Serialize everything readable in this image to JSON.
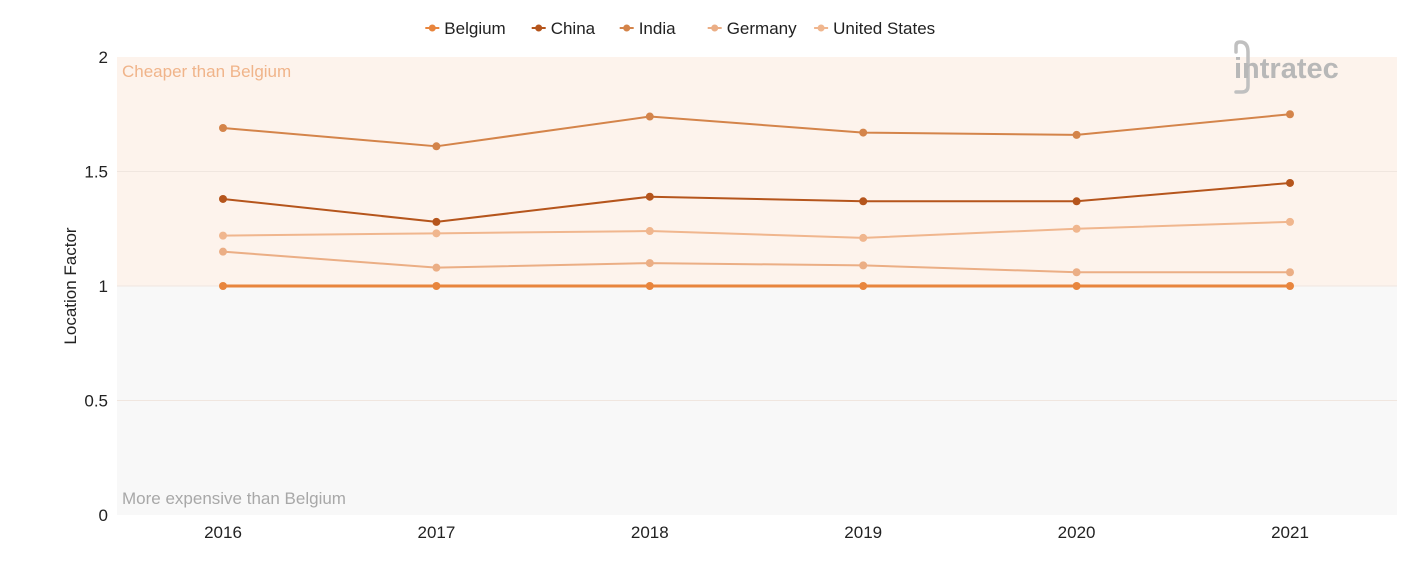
{
  "chart_data": {
    "type": "line",
    "title": "",
    "xlabel": "",
    "ylabel": "Location Factor",
    "ylim": [
      0,
      2
    ],
    "yticks": [
      0,
      0.5,
      1,
      1.5,
      2
    ],
    "ytick_labels": [
      "0",
      "0.5",
      "1",
      "1.5",
      "2"
    ],
    "categories": [
      "2016",
      "2017",
      "2018",
      "2019",
      "2020",
      "2021"
    ],
    "legend_position": "top-center",
    "grid": true,
    "bands": [
      {
        "from": 1,
        "to": 2,
        "label": "Cheaper than Belgium",
        "color": "#fdf3ec",
        "label_color": "#f0b48a",
        "label_position": "top-left"
      },
      {
        "from": 0,
        "to": 1,
        "label": "More expensive than Belgium",
        "color": "#f8f8f8",
        "label_color": "#a8a8a8",
        "label_position": "bottom-left"
      }
    ],
    "series": [
      {
        "name": "Belgium",
        "color": "#e8853d",
        "width": 3,
        "values": [
          1,
          1,
          1,
          1,
          1,
          1
        ]
      },
      {
        "name": "China",
        "color": "#b5551c",
        "width": 2,
        "values": [
          1.38,
          1.28,
          1.39,
          1.37,
          1.37,
          1.45
        ]
      },
      {
        "name": "India",
        "color": "#d4844a",
        "width": 2,
        "values": [
          1.69,
          1.61,
          1.74,
          1.67,
          1.66,
          1.75
        ]
      },
      {
        "name": "Germany",
        "color": "#ebae85",
        "width": 2,
        "values": [
          1.15,
          1.08,
          1.1,
          1.09,
          1.06,
          1.06
        ]
      },
      {
        "name": "United States",
        "color": "#f0b68e",
        "width": 2,
        "values": [
          1.22,
          1.23,
          1.24,
          1.21,
          1.25,
          1.28
        ]
      }
    ]
  },
  "logo": {
    "text": "intratec",
    "color": "#b8b8b8"
  }
}
